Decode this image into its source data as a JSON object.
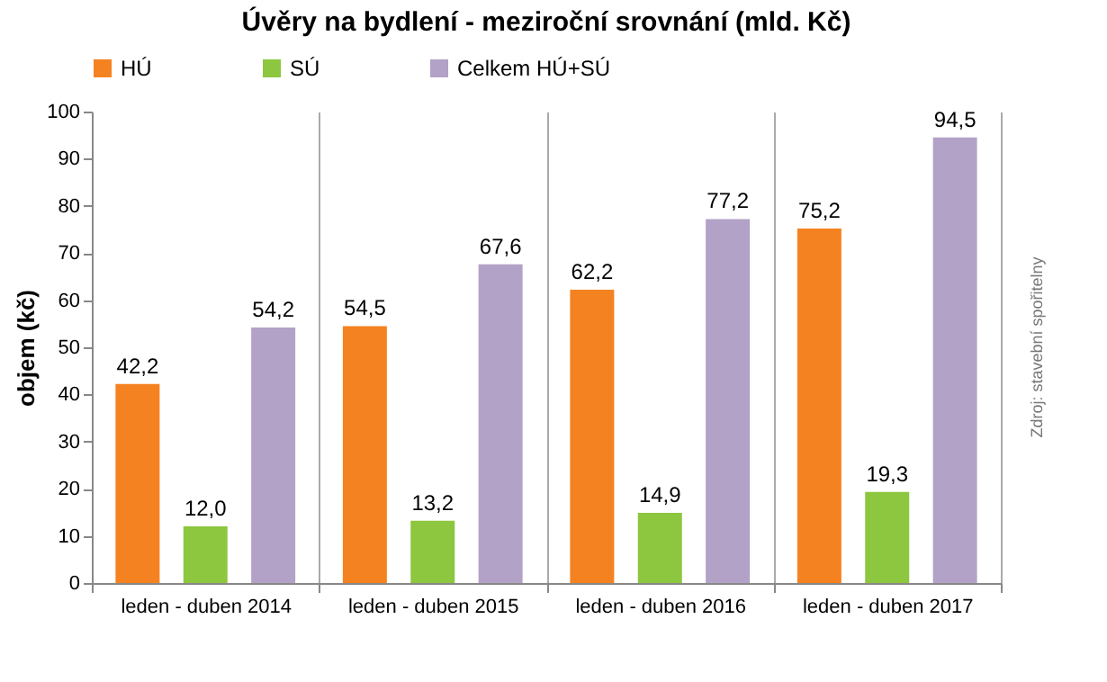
{
  "chart_data": {
    "type": "bar",
    "title": "Úvěry na bydlení - meziroční srovnání (mld. Kč)",
    "ylabel": "objem (kč)",
    "categories": [
      "leden - duben 2014",
      "leden - duben 2015",
      "leden - duben 2016",
      "leden - duben 2017"
    ],
    "series": [
      {
        "name": "HÚ",
        "color": "#f58220",
        "values": [
          42.2,
          54.5,
          62.2,
          75.2
        ],
        "value_labels": [
          "42,2",
          "54,5",
          "62,2",
          "75,2"
        ]
      },
      {
        "name": "SÚ",
        "color": "#8dc63f",
        "values": [
          12.0,
          13.2,
          14.9,
          19.3
        ],
        "value_labels": [
          "12,0",
          "13,2",
          "14,9",
          "19,3"
        ]
      },
      {
        "name": "Celkem HÚ+SÚ",
        "color": "#b3a2c7",
        "values": [
          54.2,
          67.6,
          77.2,
          94.5
        ],
        "value_labels": [
          "54,2",
          "67,6",
          "77,2",
          "94,5"
        ]
      }
    ],
    "ylim": [
      0,
      100
    ],
    "yticks": [
      0,
      10,
      20,
      30,
      40,
      50,
      60,
      70,
      80,
      90,
      100
    ],
    "grid": "x",
    "legend": "top",
    "annotations": [
      "Zdroj: stavební spořitelny"
    ]
  }
}
